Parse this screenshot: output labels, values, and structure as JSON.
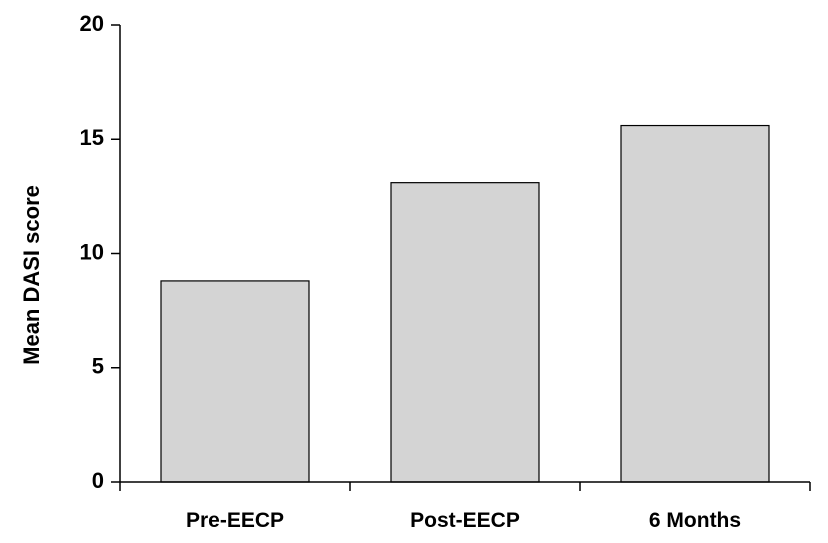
{
  "chart_data": {
    "type": "bar",
    "title": "",
    "xlabel": "",
    "ylabel": "Mean DASI score",
    "categories": [
      "Pre-EECP",
      "Post-EECP",
      "6 Months"
    ],
    "values": [
      8.8,
      13.1,
      15.6
    ],
    "ylim": [
      0,
      20
    ],
    "yticks": [
      0,
      5,
      10,
      15,
      20
    ],
    "grid": false,
    "legend": "none",
    "bar_color": "#d4d4d4",
    "bar_edge_color": "#000000"
  }
}
